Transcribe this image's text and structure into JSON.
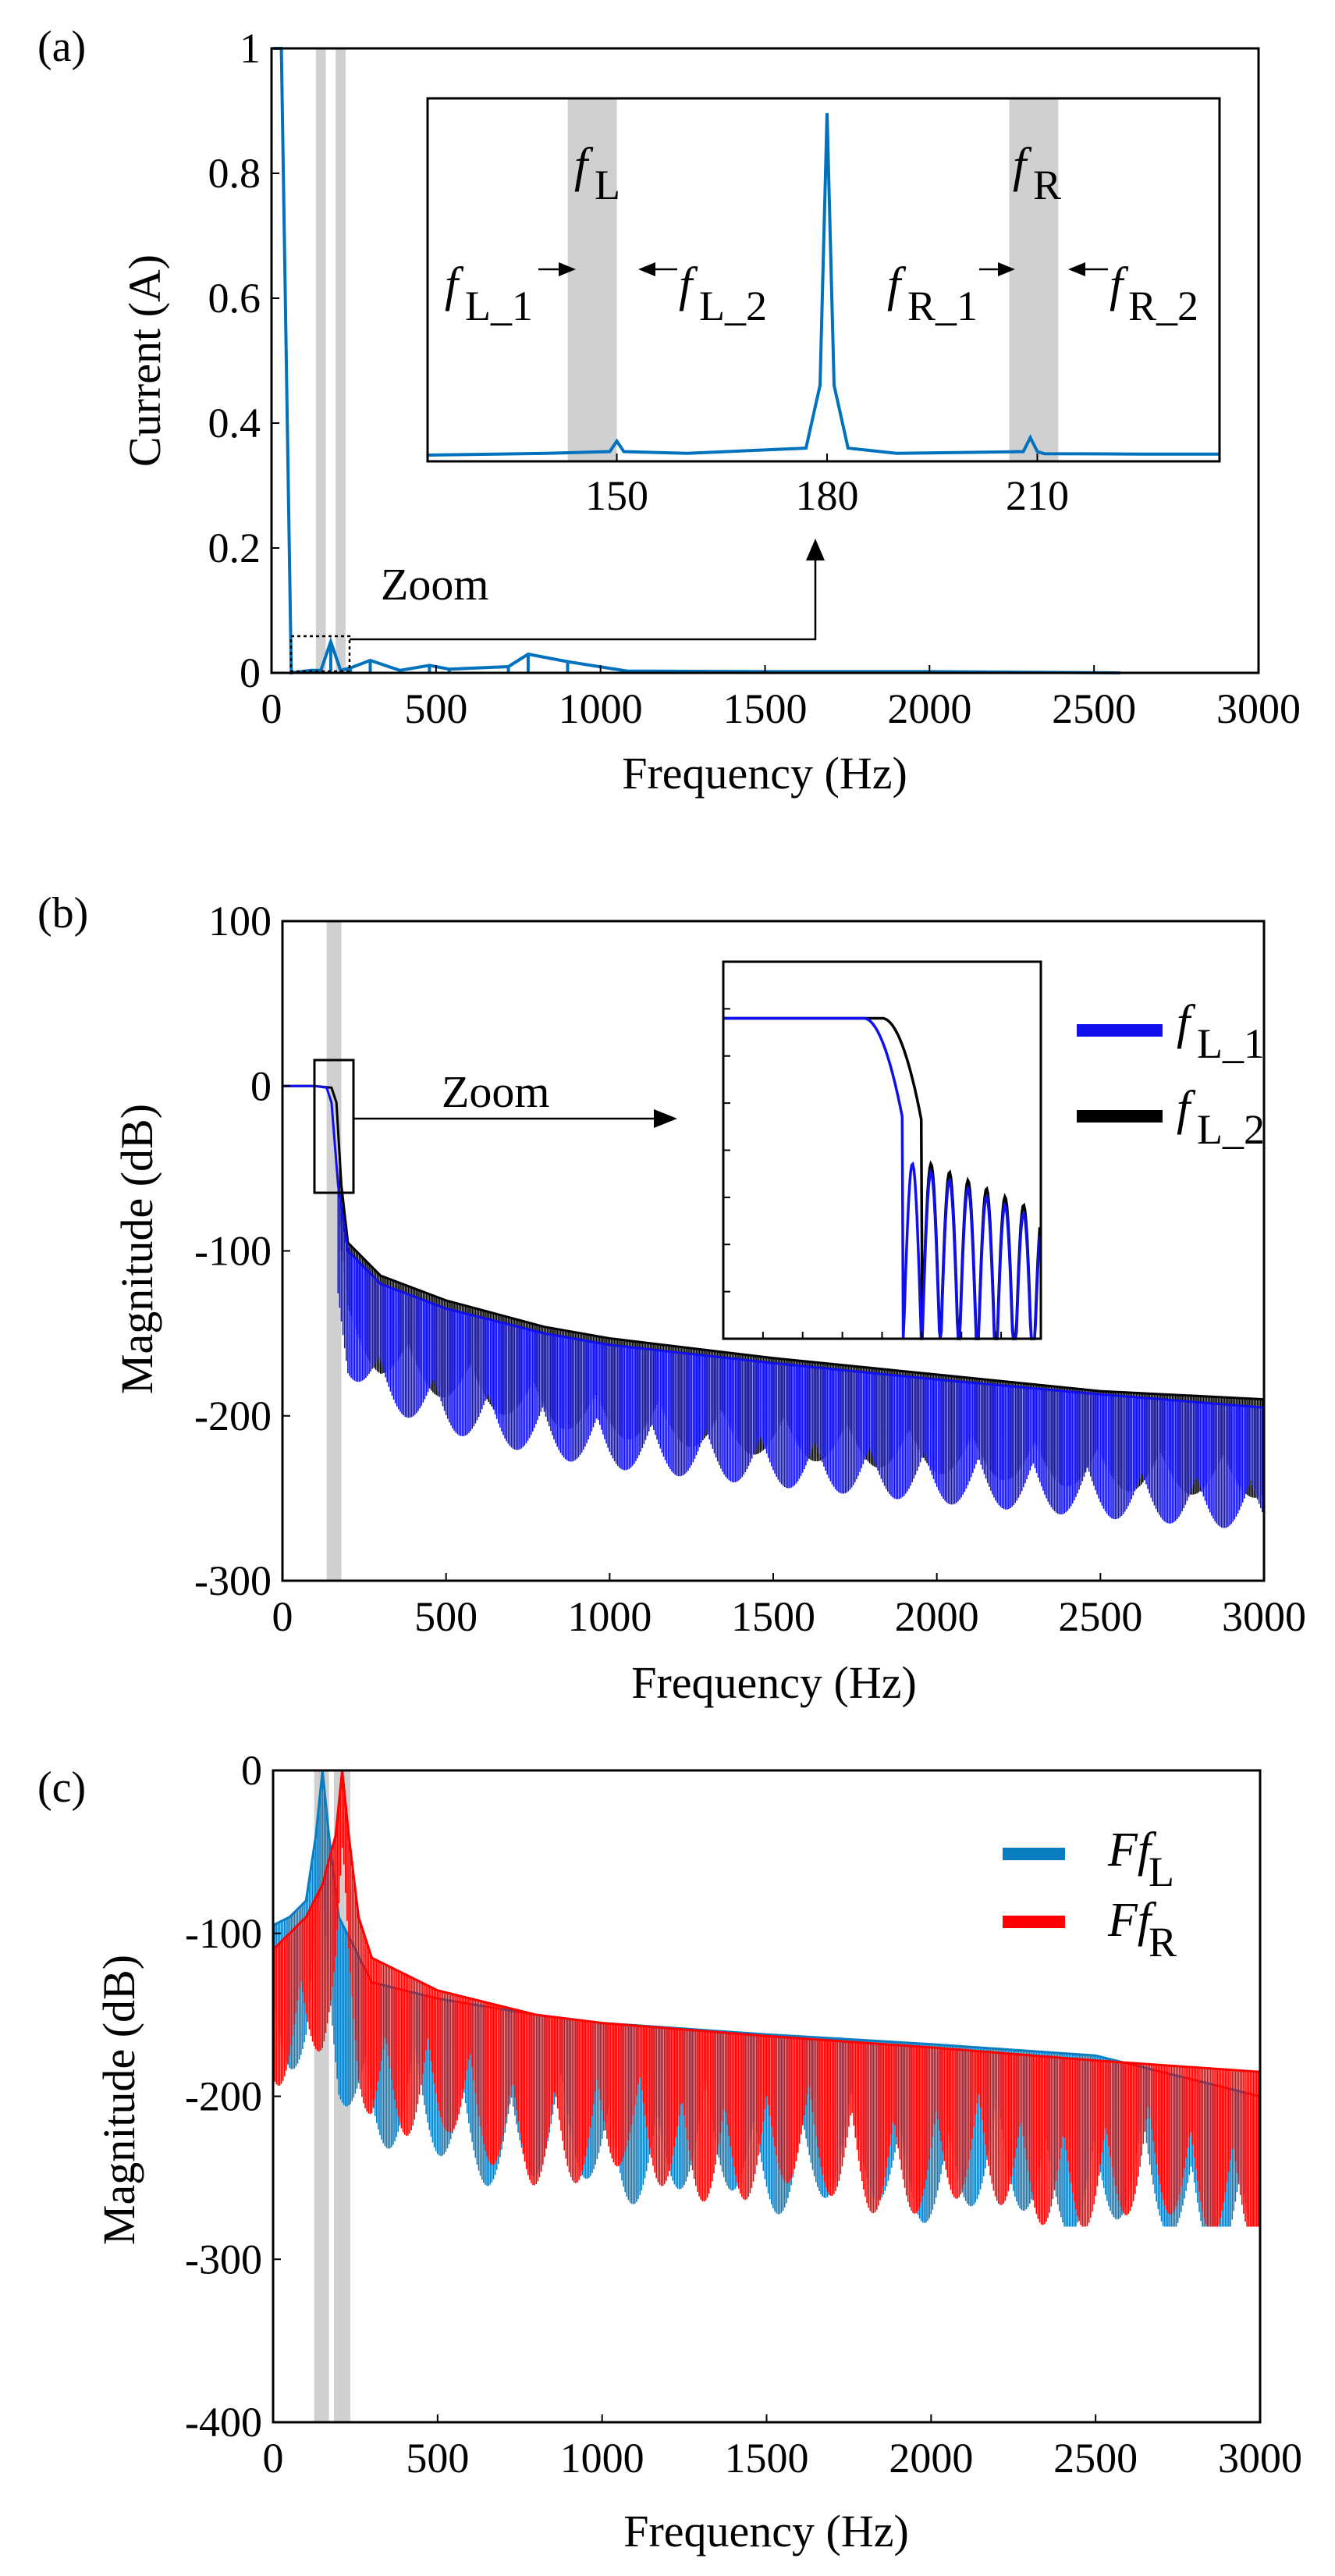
{
  "colors": {
    "blue_a": "#0072BD",
    "blue_b": "#1010EE",
    "black": "#000000",
    "blue_c": "#0A7DC2",
    "red_c": "#FF0000",
    "band": "#D0D0D0"
  },
  "chart_data": [
    {
      "panel_label": "(a)",
      "type": "line",
      "xlabel": "Frequency (Hz)",
      "ylabel": "Current (A)",
      "xlim": [
        0,
        3000
      ],
      "ylim": [
        0,
        1
      ],
      "xticks": [
        "0",
        "500",
        "1000",
        "1500",
        "2000",
        "2500",
        "3000"
      ],
      "yticks": [
        "0",
        "0.2",
        "0.4",
        "0.6",
        "0.8",
        "1"
      ],
      "grid": false,
      "bands": [
        [
          135,
          165
        ],
        [
          195,
          225
        ]
      ],
      "series": [
        {
          "color": "blue_a",
          "x": [
            5,
            30,
            60,
            120,
            150,
            180,
            210,
            240,
            300,
            390,
            480,
            540,
            720,
            780,
            900,
            1080,
            1500,
            2000,
            2580
          ],
          "y": [
            1.0,
            1.0,
            0.0,
            0.004,
            0.004,
            0.05,
            0.004,
            0.008,
            0.02,
            0.004,
            0.012,
            0.006,
            0.01,
            0.03,
            0.018,
            0.003,
            0.002,
            0.002,
            0.0
          ]
        }
      ],
      "annotations": [
        {
          "text": "Zoom",
          "x": 380,
          "y": 0.14
        }
      ],
      "zoom_box": {
        "x": [
          120,
          240
        ],
        "y": [
          0,
          0.06
        ]
      },
      "inset": {
        "xlim": [
          123,
          236
        ],
        "ylim": [
          0,
          1
        ],
        "xticks": [
          "150",
          "180",
          "210"
        ],
        "bands": [
          [
            143,
            150
          ],
          [
            206,
            213
          ]
        ],
        "labels": [
          "f",
          "L",
          "f",
          "L_1",
          "f",
          "L_2",
          "f",
          "R",
          "f",
          "R_1",
          "f",
          "R_2"
        ],
        "series": [
          {
            "color": "blue_a",
            "x": [
              123,
              140,
              149,
              150,
              151,
              160,
              177,
              179,
              180,
              181,
              183,
              190,
              208,
              209,
              210,
              211,
              225,
              236
            ],
            "y": [
              0.0,
              0.005,
              0.01,
              0.04,
              0.01,
              0.005,
              0.02,
              0.2,
              0.98,
              0.2,
              0.02,
              0.005,
              0.01,
              0.05,
              0.01,
              0.004,
              0.003,
              0.003
            ]
          }
        ]
      }
    },
    {
      "panel_label": "(b)",
      "type": "line",
      "xlabel": "Frequency (Hz)",
      "ylabel": "Magnitude (dB)",
      "xlim": [
        0,
        3000
      ],
      "ylim": [
        -300,
        100
      ],
      "xticks": [
        "0",
        "500",
        "1000",
        "1500",
        "2000",
        "2500",
        "3000"
      ],
      "yticks": [
        "-300",
        "-200",
        "-100",
        "0",
        "100"
      ],
      "grid": false,
      "legend": "right",
      "bands": [
        [
          135,
          180
        ]
      ],
      "series": [
        {
          "name_main": "f",
          "name_sub": "L_1",
          "color": "blue_b",
          "x": [
            0,
            100,
            135,
            150,
            170,
            200,
            300,
            500,
            800,
            1000,
            1500,
            2000,
            2500,
            3000
          ],
          "y": [
            0,
            0,
            -1,
            -10,
            -60,
            -100,
            -120,
            -135,
            -150,
            -157,
            -168,
            -178,
            -187,
            -195
          ]
        },
        {
          "name_main": "f",
          "name_sub": "L_2",
          "color": "black",
          "x": [
            0,
            100,
            150,
            165,
            180,
            200,
            300,
            500,
            800,
            1000,
            1500,
            2000,
            2500,
            3000
          ],
          "y": [
            0,
            0,
            -1,
            -10,
            -60,
            -95,
            -115,
            -130,
            -146,
            -153,
            -165,
            -175,
            -185,
            -190
          ]
        }
      ],
      "annotations": [
        {
          "text": "Zoom",
          "x": 700,
          "y": -5
        }
      ],
      "zoom_box": {
        "x": [
          100,
          220
        ],
        "y": [
          -68,
          12
        ]
      }
    },
    {
      "panel_label": "(c)",
      "type": "line",
      "xlabel": "Frequency (Hz)",
      "ylabel": "Magnitude (dB)",
      "xlim": [
        0,
        3000
      ],
      "ylim": [
        -400,
        0
      ],
      "xticks": [
        "0",
        "500",
        "1000",
        "1500",
        "2000",
        "2500",
        "3000"
      ],
      "yticks": [
        "-400",
        "-300",
        "-200",
        "-100",
        "0"
      ],
      "grid": false,
      "legend": "top-right",
      "bands": [
        [
          125,
          170
        ],
        [
          185,
          235
        ]
      ],
      "series": [
        {
          "name_main": "Ff",
          "name_sub": "L",
          "color": "blue_c",
          "x": [
            0,
            50,
            100,
            130,
            150,
            170,
            200,
            250,
            300,
            500,
            800,
            1000,
            1500,
            2000,
            2500,
            3000
          ],
          "y": [
            -95,
            -90,
            -80,
            -40,
            0,
            -40,
            -90,
            -110,
            -130,
            -140,
            -150,
            -155,
            -162,
            -168,
            -175,
            -200
          ]
        },
        {
          "name_main": "Ff",
          "name_sub": "R",
          "color": "red_c",
          "x": [
            0,
            50,
            100,
            150,
            190,
            210,
            230,
            260,
            300,
            500,
            800,
            1000,
            1500,
            2000,
            2500,
            3000
          ],
          "y": [
            -110,
            -100,
            -90,
            -70,
            -40,
            0,
            -40,
            -90,
            -115,
            -135,
            -150,
            -155,
            -163,
            -170,
            -178,
            -185
          ]
        }
      ]
    }
  ]
}
